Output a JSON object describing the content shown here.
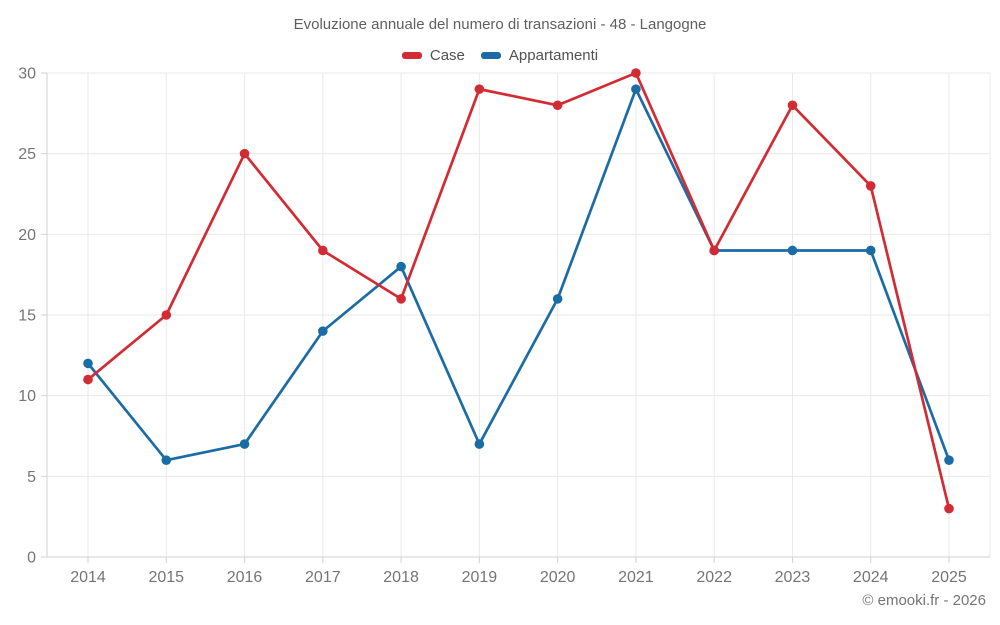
{
  "title": "Evoluzione annuale del numero di transazioni - 48 - Langogne",
  "legend": [
    {
      "label": "Case",
      "color": "#d32b33"
    },
    {
      "label": "Appartamenti",
      "color": "#1b6ca5"
    }
  ],
  "footer": {
    "credit": "© emooki.fr - 2026"
  },
  "chart_data": {
    "type": "line",
    "title": "Evoluzione annuale del numero di transazioni - 48 - Langogne",
    "xlabel": "",
    "ylabel": "",
    "categories": [
      "2014",
      "2015",
      "2016",
      "2017",
      "2018",
      "2019",
      "2020",
      "2021",
      "2022",
      "2023",
      "2024",
      "2025"
    ],
    "series": [
      {
        "name": "Case",
        "color": "#d32b33",
        "values": [
          11,
          15,
          25,
          19,
          16,
          29,
          28,
          30,
          19,
          28,
          23,
          3
        ]
      },
      {
        "name": "Appartamenti",
        "color": "#1b6ca5",
        "values": [
          12,
          6,
          7,
          14,
          18,
          7,
          16,
          29,
          19,
          19,
          19,
          6
        ]
      }
    ],
    "ylim": [
      0,
      30
    ],
    "yticks": [
      0,
      5,
      10,
      15,
      20,
      25,
      30
    ],
    "grid": true,
    "legend_position": "top"
  },
  "style": {
    "grid_color": "#e9e9e9",
    "axis_color": "#d2d2d2",
    "tick_label_color": "#757575"
  }
}
